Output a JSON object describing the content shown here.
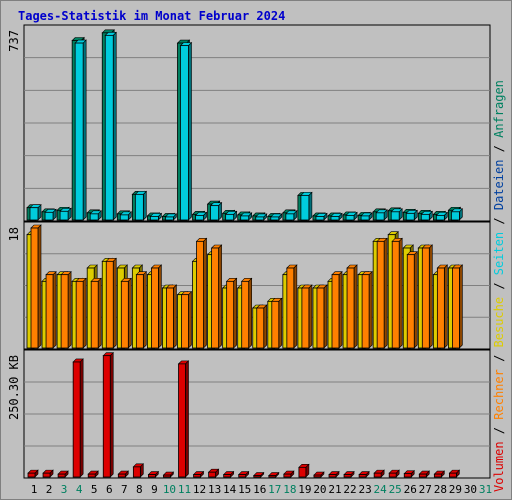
{
  "title": "Tages-Statistik im Monat Februar 2024",
  "colors": {
    "background": "#c0c0c0",
    "title": "#0000cc",
    "anfragen": "#008060",
    "dateien": "#0040a0",
    "seiten": "#00ccdd",
    "besuche": "#ddcc00",
    "rechner": "#ff8000",
    "volumen": "#dd0000",
    "weekend": "#008060"
  },
  "chart_data": [
    {
      "type": "bar",
      "name": "top-panel",
      "max_label": "737",
      "ylim": [
        0,
        737
      ],
      "categories": [
        "1",
        "2",
        "3",
        "4",
        "5",
        "6",
        "7",
        "8",
        "9",
        "10",
        "11",
        "12",
        "13",
        "14",
        "15",
        "16",
        "17",
        "18",
        "19",
        "20",
        "21",
        "22",
        "23",
        "24",
        "25",
        "26",
        "27",
        "28",
        "29",
        "30",
        "31"
      ],
      "weekend_days": [
        "3",
        "4",
        "10",
        "11",
        "17",
        "18",
        "24",
        "25",
        "31"
      ],
      "series": [
        {
          "name": "Anfragen",
          "values": [
            48,
            32,
            38,
            700,
            28,
            730,
            24,
            100,
            16,
            14,
            690,
            22,
            62,
            26,
            20,
            16,
            14,
            28,
            96,
            16,
            16,
            20,
            18,
            32,
            36,
            30,
            26,
            22,
            38,
            0,
            0
          ]
        },
        {
          "name": "Dateien",
          "values": [
            48,
            30,
            34,
            690,
            24,
            720,
            20,
            100,
            14,
            12,
            680,
            18,
            56,
            22,
            16,
            12,
            12,
            24,
            96,
            14,
            14,
            18,
            16,
            28,
            32,
            26,
            22,
            18,
            32,
            0,
            0
          ]
        }
      ]
    },
    {
      "type": "bar",
      "name": "middle-panel",
      "max_label": "18",
      "ylim": [
        0,
        18
      ],
      "categories": [
        "1",
        "2",
        "3",
        "4",
        "5",
        "6",
        "7",
        "8",
        "9",
        "10",
        "11",
        "12",
        "13",
        "14",
        "15",
        "16",
        "17",
        "18",
        "19",
        "20",
        "21",
        "22",
        "23",
        "24",
        "25",
        "26",
        "27",
        "28",
        "29",
        "30",
        "31"
      ],
      "series": [
        {
          "name": "Seiten",
          "values": [
            17,
            10,
            11,
            10,
            12,
            13,
            12,
            12,
            11,
            9,
            8,
            13,
            14,
            9,
            9,
            6,
            7,
            11,
            9,
            9,
            10,
            11,
            11,
            16,
            17,
            15,
            15,
            11,
            12,
            0,
            0
          ]
        },
        {
          "name": "Besuche",
          "values": [
            17,
            10,
            11,
            10,
            12,
            13,
            12,
            12,
            11,
            9,
            8,
            13,
            14,
            9,
            9,
            6,
            7,
            11,
            9,
            9,
            10,
            11,
            11,
            16,
            17,
            15,
            15,
            11,
            12,
            0,
            0
          ]
        },
        {
          "name": "Rechner",
          "values": [
            18,
            11,
            11,
            10,
            10,
            13,
            10,
            11,
            12,
            9,
            8,
            16,
            15,
            10,
            10,
            6,
            7,
            12,
            9,
            9,
            11,
            12,
            11,
            16,
            16,
            14,
            15,
            12,
            12,
            0,
            0
          ]
        }
      ]
    },
    {
      "type": "bar",
      "name": "bottom-panel",
      "max_label": "250.30 KB",
      "ylim": [
        0,
        250.3
      ],
      "categories": [
        "1",
        "2",
        "3",
        "4",
        "5",
        "6",
        "7",
        "8",
        "9",
        "10",
        "11",
        "12",
        "13",
        "14",
        "15",
        "16",
        "17",
        "18",
        "19",
        "20",
        "21",
        "22",
        "23",
        "24",
        "25",
        "26",
        "27",
        "28",
        "29",
        "30",
        "31"
      ],
      "series": [
        {
          "name": "Volumen",
          "values": [
            8,
            8,
            6,
            238,
            6,
            251,
            6,
            21,
            5,
            4,
            234,
            5,
            10,
            5,
            5,
            3,
            3,
            6,
            20,
            4,
            5,
            5,
            5,
            8,
            8,
            7,
            6,
            6,
            8,
            0,
            0
          ]
        }
      ]
    }
  ],
  "legend": {
    "anfragen": "Anfragen",
    "sep1": " / ",
    "dateien": "Dateien",
    "sep2": " / ",
    "seiten": "Seiten",
    "sep3": " / ",
    "besuche": "Besuche",
    "sep4": " / ",
    "rechner": "Rechner",
    "sep5": " / ",
    "volumen": "Volumen"
  }
}
